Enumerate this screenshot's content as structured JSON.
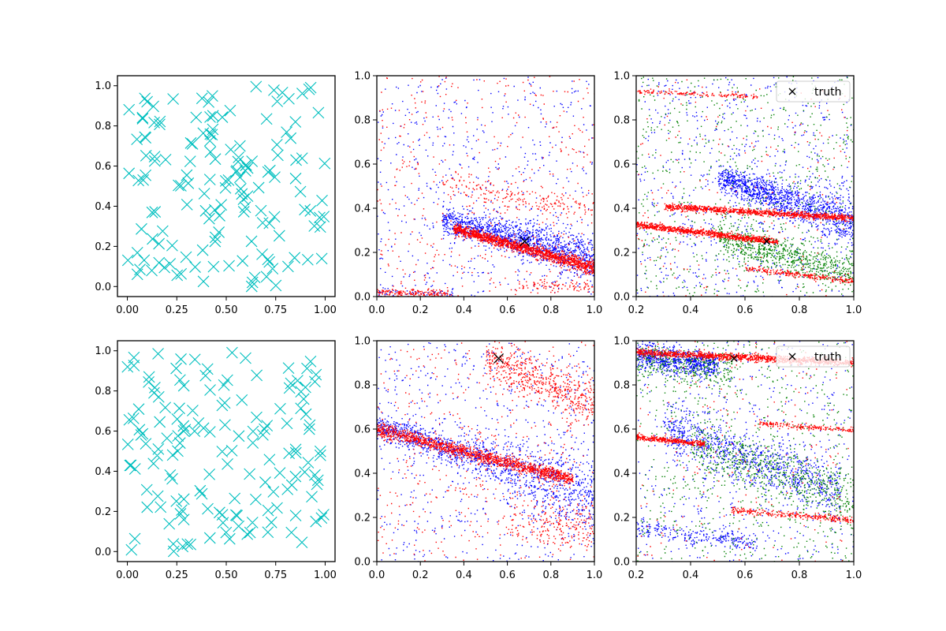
{
  "chart_data": [
    {
      "panel": "top-left",
      "type": "scatter",
      "xlim": [
        -0.05,
        1.05
      ],
      "ylim": [
        -0.05,
        1.05
      ],
      "xticks": [
        "0.00",
        "0.25",
        "0.50",
        "0.75",
        "1.00"
      ],
      "yticks": [
        "0.0",
        "0.2",
        "0.4",
        "0.6",
        "0.8",
        "1.0"
      ],
      "marker": "x",
      "count": 150,
      "distribution": "uniform in [0,1]x[0,1]",
      "color": "#00bfbf",
      "seed": 11
    },
    {
      "panel": "top-middle",
      "type": "scatter",
      "xlim": [
        0,
        1
      ],
      "ylim": [
        0,
        1
      ],
      "xticks": [
        "0.0",
        "0.2",
        "0.4",
        "0.6",
        "0.8",
        "1.0"
      ],
      "yticks": [
        "0.0",
        "0.2",
        "0.4",
        "0.6",
        "0.8",
        "1.0"
      ],
      "seed": 21,
      "series": [
        {
          "color": "blue",
          "clusters": [
            {
              "kind": "band",
              "n": 1300,
              "x": [
                0.3,
                1.0
              ],
              "y0": 0.3,
              "slope": -0.25,
              "xc": 0.5,
              "spread": 0.03,
              "spreadGrow": 0.05
            },
            {
              "kind": "uniform",
              "n": 550,
              "x": [
                0,
                1
              ],
              "y": [
                0,
                1
              ]
            },
            {
              "kind": "band",
              "n": 60,
              "x": [
                0,
                0.35
              ],
              "y0": 0.02,
              "slope": -0.03,
              "xc": 0,
              "spread": 0.01
            }
          ]
        },
        {
          "color": "red",
          "clusters": [
            {
              "kind": "band",
              "n": 1500,
              "x": [
                0.35,
                1.0
              ],
              "y0": 0.27,
              "slope": -0.28,
              "xc": 0.5,
              "spread": 0.012,
              "spreadGrow": 0.012
            },
            {
              "kind": "band",
              "n": 180,
              "x": [
                0.3,
                1.0
              ],
              "y0": 0.47,
              "slope": -0.15,
              "xc": 0.5,
              "spread": 0.03
            },
            {
              "kind": "band",
              "n": 180,
              "x": [
                0,
                0.35
              ],
              "y0": 0.02,
              "slope": -0.03,
              "xc": 0,
              "spread": 0.01
            },
            {
              "kind": "band",
              "n": 80,
              "x": [
                0.65,
                1.0
              ],
              "y0": 0.05,
              "slope": -0.05,
              "xc": 0.8,
              "spread": 0.01
            },
            {
              "kind": "uniform",
              "n": 450,
              "x": [
                0,
                1
              ],
              "y": [
                0,
                1
              ]
            }
          ]
        }
      ],
      "truth": {
        "x": 0.68,
        "y": 0.25
      }
    },
    {
      "panel": "top-right",
      "type": "scatter",
      "xlim": [
        0.2,
        1.0
      ],
      "ylim": [
        0,
        1
      ],
      "xticks": [
        "0.2",
        "0.4",
        "0.6",
        "0.8",
        "1.0"
      ],
      "yticks": [
        "0.0",
        "0.2",
        "0.4",
        "0.6",
        "0.8",
        "1.0"
      ],
      "seed": 31,
      "series": [
        {
          "color": "blue",
          "clusters": [
            {
              "kind": "band",
              "n": 1200,
              "x": [
                0.5,
                1.0
              ],
              "y0": 0.5,
              "slope": -0.4,
              "xc": 0.6,
              "spread": 0.03,
              "spreadGrow": 0.08
            },
            {
              "kind": "uniform",
              "n": 700,
              "x": [
                0.2,
                1.0
              ],
              "y": [
                0,
                1
              ]
            }
          ]
        },
        {
          "color": "green",
          "clusters": [
            {
              "kind": "band",
              "n": 700,
              "x": [
                0.5,
                1.0
              ],
              "y0": 0.24,
              "slope": -0.35,
              "xc": 0.6,
              "spread": 0.04
            },
            {
              "kind": "uniform",
              "n": 650,
              "x": [
                0.2,
                1.0
              ],
              "y": [
                0,
                1
              ]
            }
          ]
        },
        {
          "color": "red",
          "clusters": [
            {
              "kind": "band",
              "n": 900,
              "x": [
                0.2,
                0.72
              ],
              "y0": 0.29,
              "slope": -0.15,
              "xc": 0.45,
              "spread": 0.007
            },
            {
              "kind": "band",
              "n": 1000,
              "x": [
                0.3,
                1.0
              ],
              "y0": 0.38,
              "slope": -0.075,
              "xc": 0.7,
              "spread": 0.007
            },
            {
              "kind": "band",
              "n": 250,
              "x": [
                0.6,
                1.0
              ],
              "y0": 0.1,
              "slope": -0.15,
              "xc": 0.8,
              "spread": 0.007
            },
            {
              "kind": "band",
              "n": 150,
              "x": [
                0.2,
                0.65
              ],
              "y0": 0.92,
              "slope": -0.05,
              "xc": 0.4,
              "spread": 0.005
            },
            {
              "kind": "uniform",
              "n": 200,
              "x": [
                0.2,
                1.0
              ],
              "y": [
                0,
                1
              ]
            }
          ]
        }
      ],
      "truth": {
        "x": 0.68,
        "y": 0.25
      },
      "legend": {
        "label": "truth",
        "position": "upper right"
      }
    },
    {
      "panel": "bottom-left",
      "type": "scatter",
      "xlim": [
        -0.05,
        1.05
      ],
      "ylim": [
        -0.05,
        1.05
      ],
      "xticks": [
        "0.00",
        "0.25",
        "0.50",
        "0.75",
        "1.00"
      ],
      "yticks": [
        "0.0",
        "0.2",
        "0.4",
        "0.6",
        "0.8",
        "1.0"
      ],
      "marker": "x",
      "count": 150,
      "distribution": "uniform in [0,1]x[0,1]",
      "color": "#00bfbf",
      "seed": 41
    },
    {
      "panel": "bottom-middle",
      "type": "scatter",
      "xlim": [
        0,
        1
      ],
      "ylim": [
        0,
        1
      ],
      "xticks": [
        "0.0",
        "0.2",
        "0.4",
        "0.6",
        "0.8",
        "1.0"
      ],
      "yticks": [
        "0.0",
        "0.2",
        "0.4",
        "0.6",
        "0.8",
        "1.0"
      ],
      "seed": 51,
      "series": [
        {
          "color": "blue",
          "clusters": [
            {
              "kind": "band",
              "n": 1300,
              "x": [
                0,
                1.0
              ],
              "y0": 0.52,
              "slope": -0.32,
              "xc": 0.3,
              "spread": 0.03,
              "spreadGrow": 0.1
            },
            {
              "kind": "uniform",
              "n": 600,
              "x": [
                0,
                1
              ],
              "y": [
                0,
                1
              ]
            }
          ]
        },
        {
          "color": "red",
          "clusters": [
            {
              "kind": "band",
              "n": 1400,
              "x": [
                0,
                0.9
              ],
              "y0": 0.55,
              "slope": -0.25,
              "xc": 0.2,
              "spread": 0.015
            },
            {
              "kind": "band",
              "n": 550,
              "x": [
                0.5,
                1.0
              ],
              "y0": 0.88,
              "slope": -0.4,
              "xc": 0.6,
              "spread": 0.05
            },
            {
              "kind": "band",
              "n": 200,
              "x": [
                0.6,
                1.0
              ],
              "y0": 0.18,
              "slope": -0.1,
              "xc": 0.8,
              "spread": 0.06
            },
            {
              "kind": "uniform",
              "n": 450,
              "x": [
                0,
                1
              ],
              "y": [
                0,
                1
              ]
            }
          ]
        }
      ],
      "truth": {
        "x": 0.56,
        "y": 0.92
      }
    },
    {
      "panel": "bottom-right",
      "type": "scatter",
      "xlim": [
        0.2,
        1.0
      ],
      "ylim": [
        0,
        1
      ],
      "xticks": [
        "0.2",
        "0.4",
        "0.6",
        "0.8",
        "1.0"
      ],
      "yticks": [
        "0.0",
        "0.2",
        "0.4",
        "0.6",
        "0.8",
        "1.0"
      ],
      "seed": 61,
      "series": [
        {
          "color": "blue",
          "clusters": [
            {
              "kind": "band",
              "n": 700,
              "x": [
                0.2,
                0.5
              ],
              "y0": 0.92,
              "slope": -0.15,
              "xc": 0.3,
              "spread": 0.03
            },
            {
              "kind": "band",
              "n": 900,
              "x": [
                0.3,
                0.95
              ],
              "y0": 0.52,
              "slope": -0.45,
              "xc": 0.5,
              "spread": 0.06
            },
            {
              "kind": "band",
              "n": 250,
              "x": [
                0.2,
                0.65
              ],
              "y0": 0.13,
              "slope": -0.15,
              "xc": 0.35,
              "spread": 0.02
            },
            {
              "kind": "uniform",
              "n": 500,
              "x": [
                0.2,
                1.0
              ],
              "y": [
                0,
                1
              ]
            }
          ]
        },
        {
          "color": "green",
          "clusters": [
            {
              "kind": "band",
              "n": 300,
              "x": [
                0.2,
                0.55
              ],
              "y0": 0.9,
              "slope": -0.15,
              "xc": 0.3,
              "spread": 0.04
            },
            {
              "kind": "band",
              "n": 600,
              "x": [
                0.4,
                1.0
              ],
              "y0": 0.45,
              "slope": -0.4,
              "xc": 0.6,
              "spread": 0.07
            },
            {
              "kind": "uniform",
              "n": 650,
              "x": [
                0.2,
                1.0
              ],
              "y": [
                0,
                1
              ]
            }
          ]
        },
        {
          "color": "red",
          "clusters": [
            {
              "kind": "band",
              "n": 1100,
              "x": [
                0.2,
                1.0
              ],
              "y0": 0.95,
              "slope": -0.06,
              "xc": 0.2,
              "spread": 0.008
            },
            {
              "kind": "band",
              "n": 350,
              "x": [
                0.2,
                0.45
              ],
              "y0": 0.565,
              "slope": -0.12,
              "xc": 0.2,
              "spread": 0.006
            },
            {
              "kind": "band",
              "n": 180,
              "x": [
                0.65,
                1.0
              ],
              "y0": 0.63,
              "slope": -0.1,
              "xc": 0.65,
              "spread": 0.006
            },
            {
              "kind": "band",
              "n": 280,
              "x": [
                0.55,
                1.0
              ],
              "y0": 0.235,
              "slope": -0.1,
              "xc": 0.55,
              "spread": 0.008
            },
            {
              "kind": "uniform",
              "n": 200,
              "x": [
                0.2,
                1.0
              ],
              "y": [
                0,
                1
              ]
            }
          ]
        }
      ],
      "truth": {
        "x": 0.56,
        "y": 0.92
      },
      "legend": {
        "label": "truth",
        "position": "upper right"
      }
    }
  ]
}
